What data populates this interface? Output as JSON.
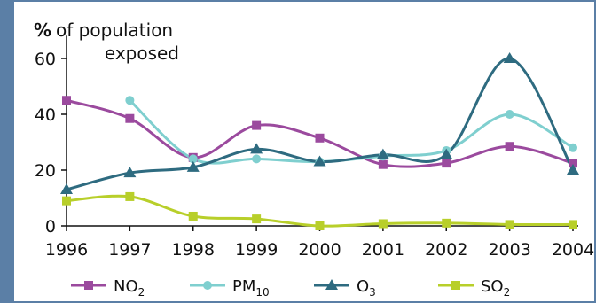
{
  "chart_data": {
    "type": "line",
    "ylabel_symbol": "%",
    "ylabel_line1": "of population",
    "ylabel_line2": "exposed",
    "x": [
      "1996",
      "1997",
      "1998",
      "1999",
      "2000",
      "2001",
      "2002",
      "2003",
      "2004"
    ],
    "ylim": [
      0,
      65
    ],
    "yticks": [
      "0",
      "20",
      "40",
      "60"
    ],
    "grid": false,
    "legend_position": "bottom",
    "series": [
      {
        "name": "NO",
        "sub": "2",
        "color": "#9b4a9e",
        "marker": "square",
        "values": [
          45,
          38.5,
          24.5,
          36,
          31.5,
          22,
          22.5,
          28.5,
          22.5
        ]
      },
      {
        "name": "PM",
        "sub": "10",
        "color": "#7fcfcf",
        "marker": "circle",
        "values": [
          null,
          45,
          24,
          24,
          23,
          25,
          27,
          40,
          28
        ]
      },
      {
        "name": "O",
        "sub": "3",
        "color": "#2e6b80",
        "marker": "triangle",
        "values": [
          13,
          19,
          21,
          27.5,
          23,
          25.5,
          25.5,
          60,
          20
        ]
      },
      {
        "name": "SO",
        "sub": "2",
        "color": "#b8cf2a",
        "marker": "square",
        "values": [
          9,
          10.5,
          3.5,
          2.5,
          0,
          0.8,
          1,
          0.5,
          0.5
        ]
      }
    ]
  }
}
